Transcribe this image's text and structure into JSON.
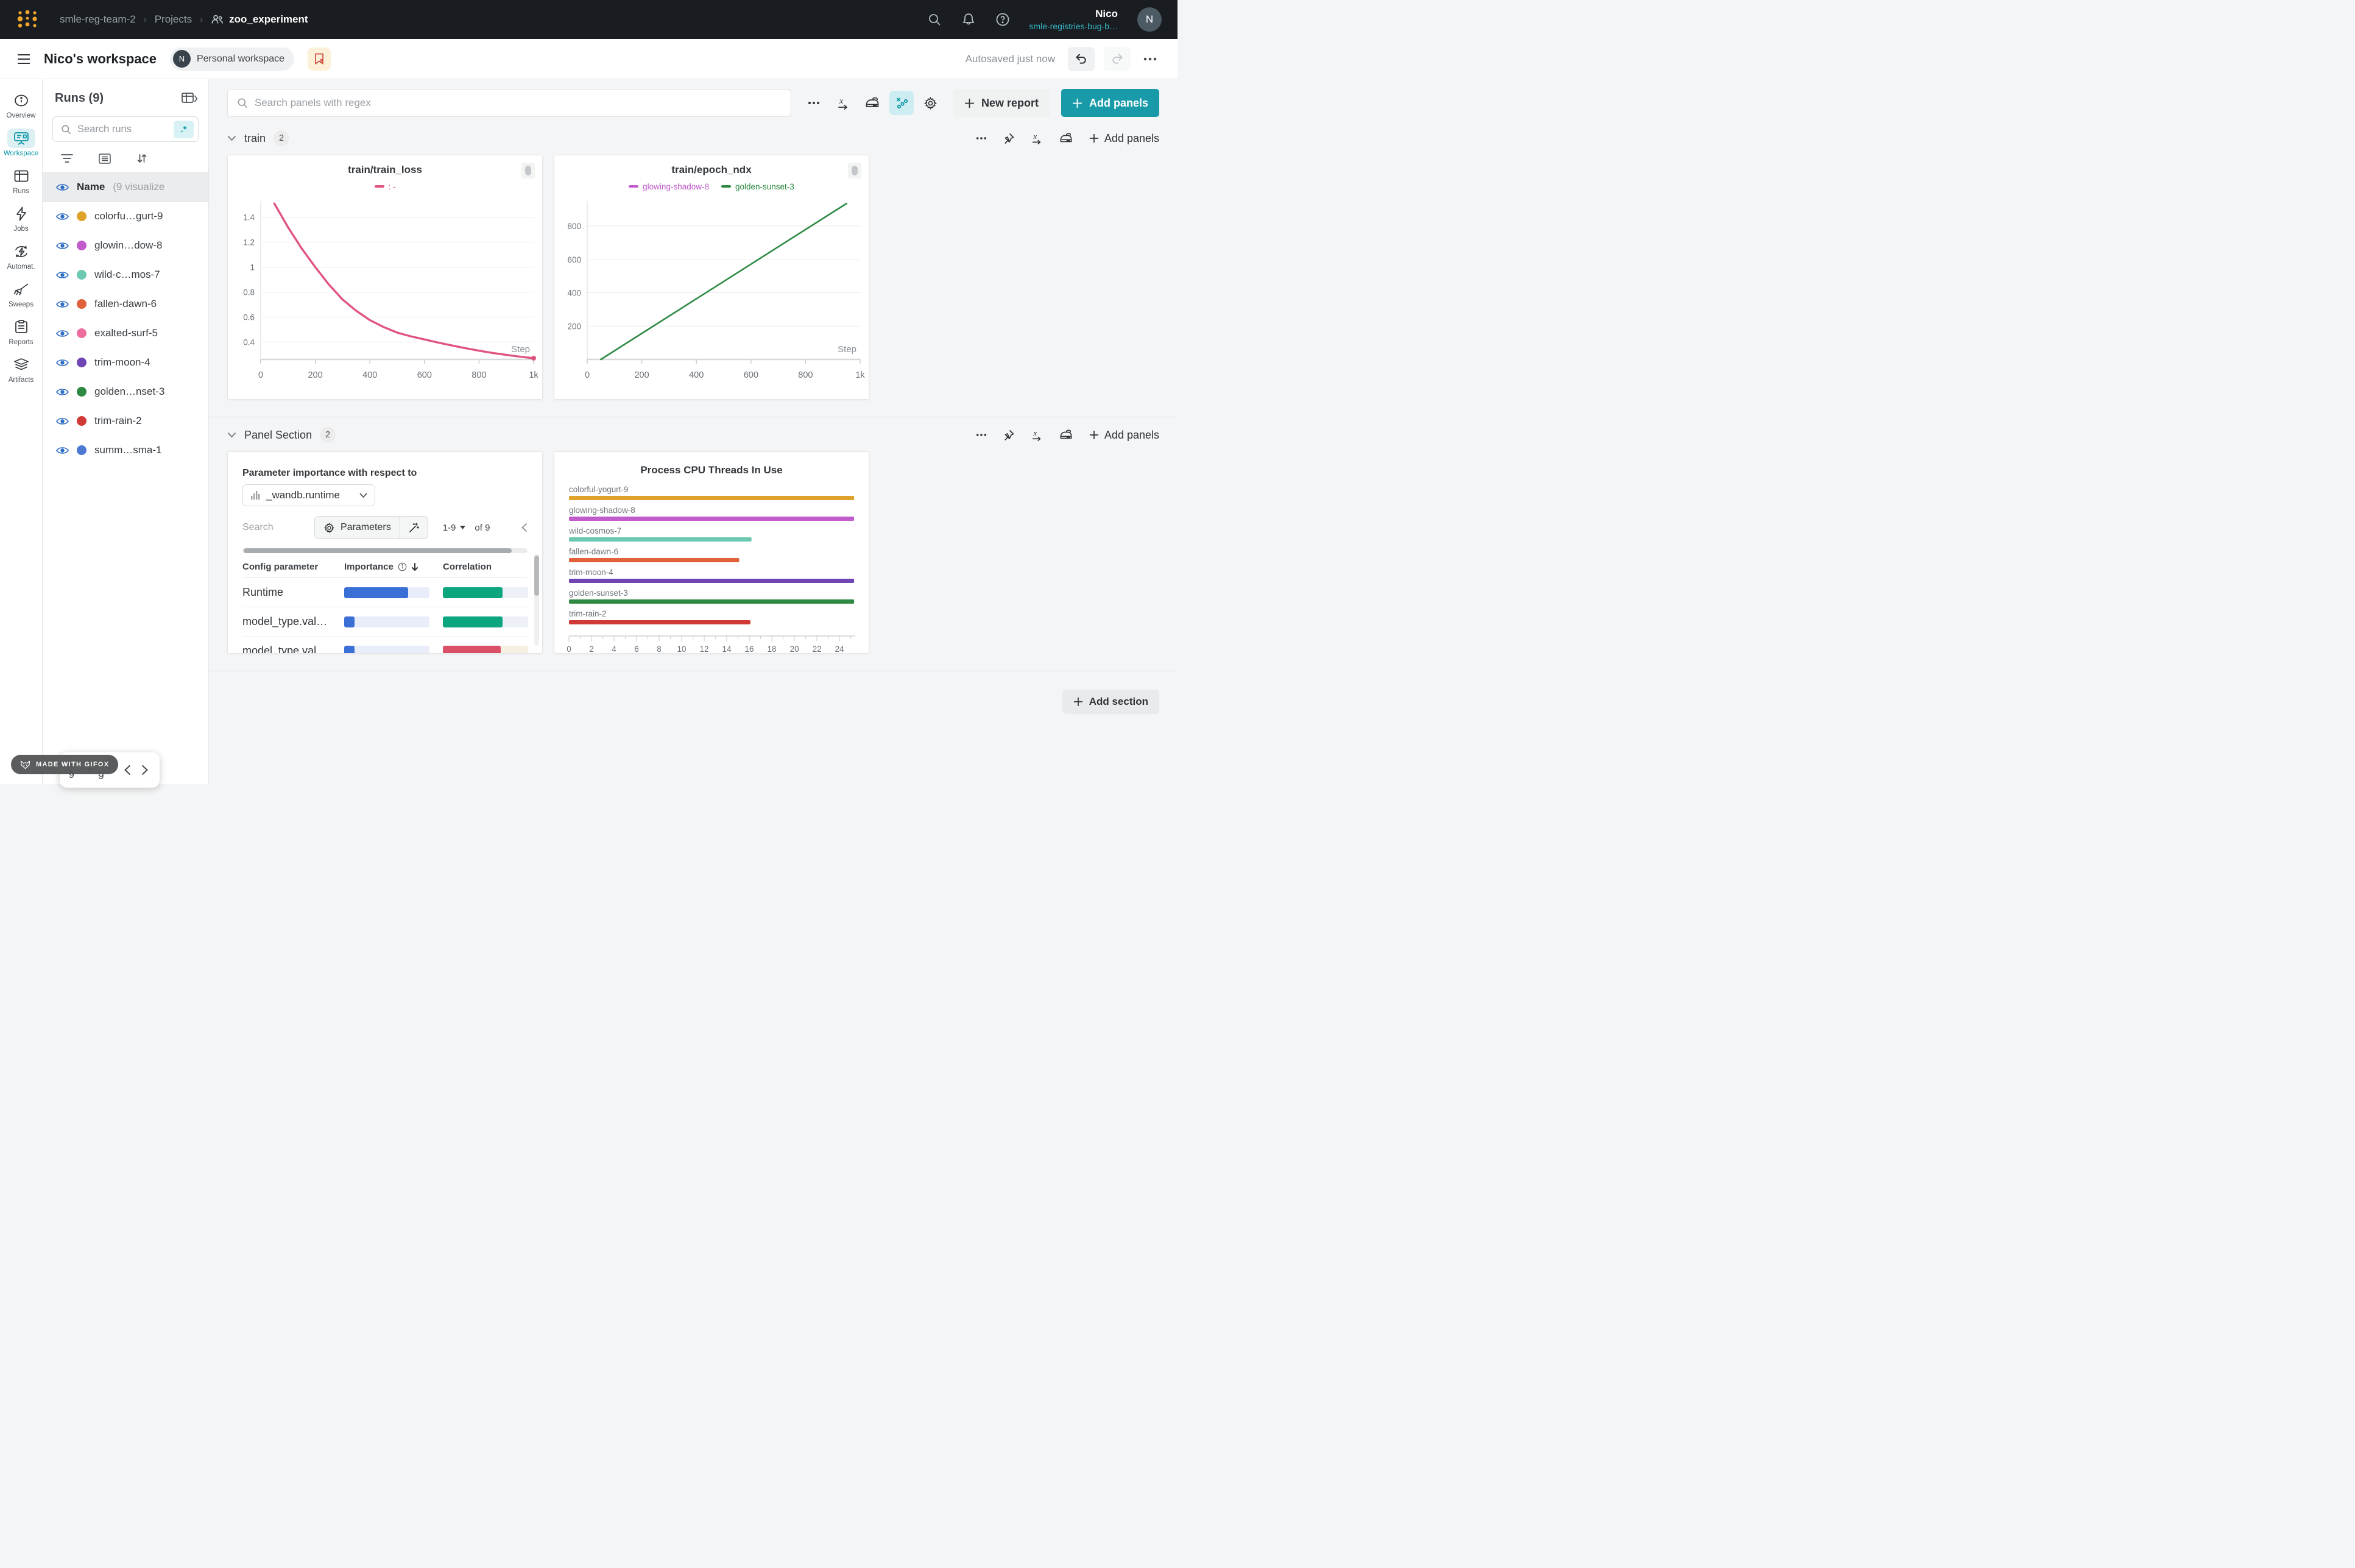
{
  "topbar": {
    "breadcrumb": {
      "team": "smle-reg-team-2",
      "section": "Projects",
      "separator": "›",
      "project": "zoo_experiment"
    },
    "user": {
      "name": "Nico",
      "org": "smle-registries-bug-b…",
      "avatar_initial": "N"
    }
  },
  "header": {
    "title": "Nico's workspace",
    "badge_avatar": "N",
    "badge_label": "Personal workspace",
    "autosave": "Autosaved just now"
  },
  "rail": {
    "items": [
      {
        "label": "Overview",
        "icon": "info",
        "active": false
      },
      {
        "label": "Workspace",
        "icon": "workspace",
        "active": true
      },
      {
        "label": "Runs",
        "icon": "runstable",
        "active": false
      },
      {
        "label": "Jobs",
        "icon": "jobs",
        "active": false
      },
      {
        "label": "Automat.",
        "icon": "automations",
        "active": false
      },
      {
        "label": "Sweeps",
        "icon": "sweeps",
        "active": false
      },
      {
        "label": "Reports",
        "icon": "reports",
        "active": false
      },
      {
        "label": "Artifacts",
        "icon": "artifacts",
        "active": false
      }
    ]
  },
  "runs_panel": {
    "title": "Runs (9)",
    "search_placeholder": "Search runs",
    "regex_badge": ".*",
    "list_header": {
      "name": "Name",
      "note": "(9 visualize"
    },
    "runs": [
      {
        "name": "colorfu…gurt-9",
        "color": "#dfa32b"
      },
      {
        "name": "glowin…dow-8",
        "color": "#c05ccb"
      },
      {
        "name": "wild-c…mos-7",
        "color": "#6cc8b0"
      },
      {
        "name": "fallen-dawn-6",
        "color": "#e0613a"
      },
      {
        "name": "exalted-surf-5",
        "color": "#ed6e9e"
      },
      {
        "name": "trim-moon-4",
        "color": "#6f46b4"
      },
      {
        "name": "golden…nset-3",
        "color": "#2e8a43"
      },
      {
        "name": "trim-rain-2",
        "color": "#d03a36"
      },
      {
        "name": "summ…sma-1",
        "color": "#4d79d2"
      }
    ],
    "pagination": {
      "range": "1-9",
      "of": "of 9"
    }
  },
  "toolbar": {
    "search_placeholder": "Search panels with regex",
    "new_report": "New report",
    "add_panels": "Add panels"
  },
  "sections": {
    "train": {
      "title": "train",
      "count": "2",
      "add_panels": "Add panels"
    },
    "panel_section": {
      "title": "Panel Section",
      "count": "2",
      "add_panels": "Add panels"
    }
  },
  "importance_panel": {
    "title": "Parameter importance with respect to",
    "metric": "_wandb.runtime",
    "search_placeholder": "Search",
    "parameters_button": "Parameters",
    "pagination": {
      "range": "1-9",
      "of": "of 9"
    },
    "columns": {
      "param": "Config parameter",
      "importance": "Importance",
      "correlation": "Correlation"
    },
    "importance_color": "#3a6fd6",
    "importance_track": "#e8edf9",
    "rows": [
      {
        "param": "Runtime",
        "importance": 0.75,
        "correlation": 0.7,
        "correlation_color": "#0ba67e",
        "correlation_track": "#edf1f7"
      },
      {
        "param": "model_type.val…",
        "importance": 0.12,
        "correlation": 0.7,
        "correlation_color": "#0ba67e",
        "correlation_track": "#edf1f7"
      },
      {
        "param": "model_type.val…",
        "importance": 0.12,
        "correlation": 0.68,
        "correlation_color": "#d95166",
        "correlation_track": "#f6f0e2"
      }
    ]
  },
  "footer": {
    "add_section": "Add section",
    "gifox": "MADE WITH GIFOX"
  },
  "chart_data": [
    {
      "id": "train_loss",
      "type": "line",
      "title": "train/train_loss",
      "xlabel": "Step",
      "xlim": [
        0,
        1000
      ],
      "ylim": [
        0.26,
        1.53
      ],
      "x_ticks": [
        0,
        200,
        400,
        600,
        800,
        1000
      ],
      "x_tick_labels": [
        "0",
        "200",
        "400",
        "600",
        "800",
        "1k"
      ],
      "y_ticks": [
        0.4,
        0.6,
        0.8,
        1,
        1.2,
        1.4
      ],
      "grid": true,
      "legend_position": "top",
      "legend": [
        {
          "label": ": -",
          "color": "#e0557f"
        }
      ],
      "series": [
        {
          "name": "train_loss",
          "color": "#e0557f",
          "width": 3.4,
          "end_dot": true,
          "x": [
            50,
            100,
            150,
            200,
            250,
            300,
            350,
            400,
            450,
            500,
            550,
            600,
            650,
            700,
            750,
            800,
            850,
            900,
            950,
            1000
          ],
          "y": [
            1.51,
            1.32,
            1.15,
            1.0,
            0.86,
            0.74,
            0.65,
            0.575,
            0.52,
            0.475,
            0.445,
            0.42,
            0.395,
            0.372,
            0.35,
            0.33,
            0.312,
            0.296,
            0.282,
            0.27
          ]
        }
      ]
    },
    {
      "id": "epoch_ndx",
      "type": "line",
      "title": "train/epoch_ndx",
      "xlabel": "Step",
      "xlim": [
        0,
        1000
      ],
      "ylim": [
        0,
        950
      ],
      "x_ticks": [
        0,
        200,
        400,
        600,
        800,
        1000
      ],
      "x_tick_labels": [
        "0",
        "200",
        "400",
        "600",
        "800",
        "1k"
      ],
      "y_ticks": [
        200,
        400,
        600,
        800
      ],
      "grid": true,
      "legend_position": "top",
      "legend": [
        {
          "label": "glowing-shadow-8",
          "color": "#c05ccb"
        },
        {
          "label": "golden-sunset-3",
          "color": "#2e8a43"
        }
      ],
      "series": [
        {
          "name": "golden-sunset-3",
          "color": "#2e8a43",
          "width": 2.6,
          "end_dot": false,
          "x": [
            50,
            950
          ],
          "y": [
            0,
            935
          ]
        }
      ]
    },
    {
      "id": "cpu_threads",
      "type": "bar",
      "orientation": "horizontal",
      "title": "Process CPU Threads In Use",
      "categories": [
        "colorful-yogurt-9",
        "glowing-shadow-8",
        "wild-cosmos-7",
        "fallen-dawn-6",
        "trim-moon-4",
        "golden-sunset-3",
        "trim-rain-2"
      ],
      "values": [
        25.3,
        25.3,
        16.2,
        15.1,
        25.3,
        25.3,
        16.1
      ],
      "colors": [
        "#dfa32b",
        "#c05ccb",
        "#6cc8b0",
        "#e0613a",
        "#6f46b4",
        "#2e8a43",
        "#d03a36"
      ],
      "xlim": [
        0,
        25.4
      ],
      "x_ticks": [
        0,
        2,
        4,
        6,
        8,
        10,
        12,
        14,
        16,
        18,
        20,
        22,
        24
      ],
      "minor_tick_step": 1
    }
  ]
}
